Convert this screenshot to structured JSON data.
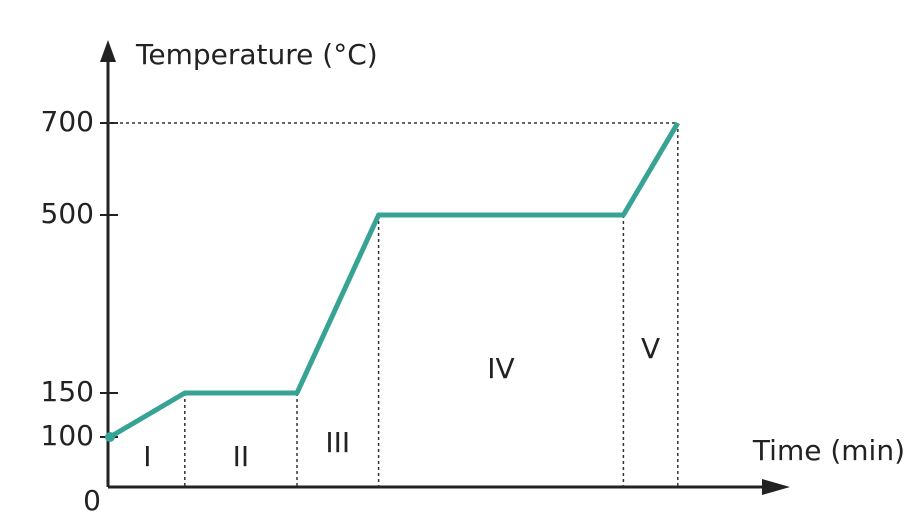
{
  "chart_data": {
    "type": "line",
    "y_label": "Temperature (°C)",
    "x_label": "Time (min)",
    "x": [
      0,
      11,
      27.5,
      39.5,
      75.5,
      83.5
    ],
    "series": [
      {
        "name": "Temperature",
        "color": "#36a394",
        "values": [
          100,
          150,
          150,
          500,
          500,
          700
        ]
      }
    ],
    "xlim": [
      0,
      100
    ],
    "yticks": [
      0,
      100,
      150,
      500,
      700
    ],
    "regions": [
      "I",
      "II",
      "III",
      "IV",
      "V"
    ]
  }
}
